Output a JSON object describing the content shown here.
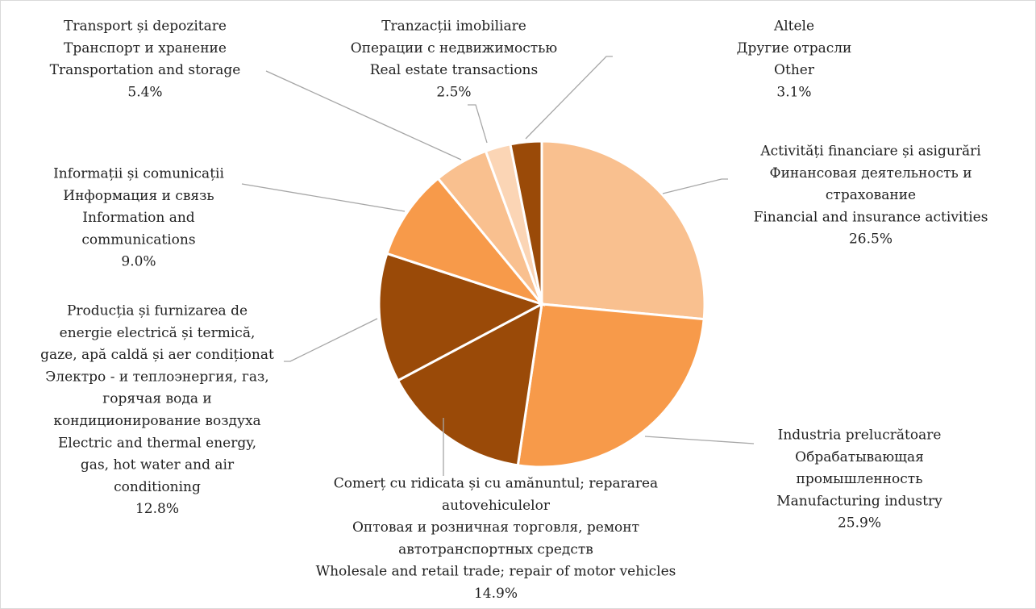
{
  "chart_data": {
    "type": "pie",
    "categories": [
      [
        "Activități financiare și asigurări",
        "Финансовая деятельность и",
        "страхование",
        "Financial and insurance activities"
      ],
      [
        "Industria prelucrătoare",
        "Обрабатывающая",
        "промышленность",
        "Manufacturing industry"
      ],
      [
        "Comerț cu ridicata și cu amănuntul; repararea",
        "autovehiculelor",
        "Оптовая и розничная торговля,  ремонт",
        "автотранспортных средств",
        "Wholesale and retail trade; repair of motor vehicles"
      ],
      [
        "Producția și furnizarea de",
        "energie electrică și termică,",
        "gaze, apă caldă și aer condiționat",
        "Электро - и теплоэнергия, газ,",
        "горячая вода и",
        "кондиционирование воздуха",
        "Electric and thermal energy,",
        "gas, hot water and air",
        "conditioning"
      ],
      [
        "Informații și comunicații",
        "Информация и связь",
        "Information and",
        "communications"
      ],
      [
        "Transport și depozitare",
        "Транспорт  и хранение",
        "Transportation and storage"
      ],
      [
        "Tranzacții imobiliare",
        "Операции с недвижимостью",
        "Real estate transactions"
      ],
      [
        "Altele",
        "Другие отрасли",
        "Other"
      ]
    ],
    "values": [
      26.5,
      25.9,
      14.9,
      12.8,
      9.0,
      5.4,
      2.5,
      3.1
    ],
    "value_labels": [
      "26.5%",
      "25.9%",
      "14.9%",
      "12.8%",
      "9.0%",
      "5.4%",
      "2.5%",
      "3.1%"
    ],
    "colors": [
      "#f9c08f",
      "#f79a4a",
      "#9a4a08",
      "#9a4a08",
      "#f79a4a",
      "#f9c08f",
      "#fbd5b5",
      "#9a4a08"
    ]
  }
}
